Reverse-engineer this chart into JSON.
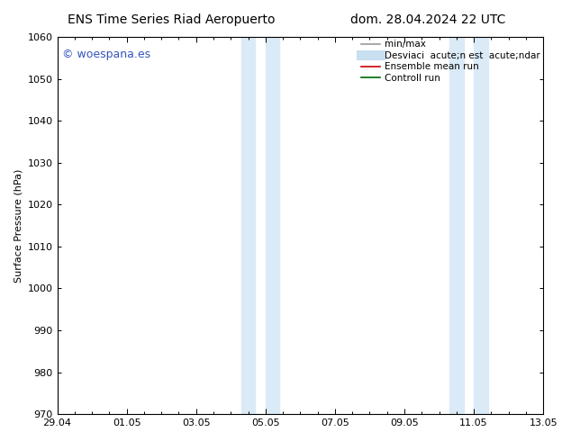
{
  "title_left": "ENS Time Series Riad Aeropuerto",
  "title_right": "dom. 28.04.2024 22 UTC",
  "ylabel": "Surface Pressure (hPa)",
  "ylim": [
    970,
    1060
  ],
  "yticks": [
    970,
    980,
    990,
    1000,
    1010,
    1020,
    1030,
    1040,
    1050,
    1060
  ],
  "xtick_labels": [
    "29.04",
    "01.05",
    "03.05",
    "05.05",
    "07.05",
    "09.05",
    "11.05",
    "13.05"
  ],
  "xtick_positions": [
    0,
    2,
    4,
    6,
    8,
    10,
    12,
    14
  ],
  "xlim": [
    0,
    14
  ],
  "shaded_bands": [
    {
      "x_start": 5.3,
      "x_end": 5.7
    },
    {
      "x_start": 6.0,
      "x_end": 6.4
    },
    {
      "x_start": 11.3,
      "x_end": 11.7
    },
    {
      "x_start": 12.0,
      "x_end": 12.4
    }
  ],
  "shade_color": "#daeaf7",
  "watermark_text": "© woespana.es",
  "watermark_color": "#3355bb",
  "legend_entries": [
    {
      "label": "min/max",
      "color": "#999999",
      "lw": 1.2,
      "style": "line"
    },
    {
      "label": "Desviaci  acute;n est  acute;ndar",
      "color": "#c8dff0",
      "lw": 8,
      "style": "line"
    },
    {
      "label": "Ensemble mean run",
      "color": "#cc0000",
      "lw": 1.2,
      "style": "line"
    },
    {
      "label": "Controll run",
      "color": "#006600",
      "lw": 1.2,
      "style": "line"
    }
  ],
  "background_color": "#ffffff",
  "plot_bg_color": "#ffffff",
  "title_fontsize": 10,
  "axis_fontsize": 8,
  "tick_fontsize": 8,
  "legend_fontsize": 7.5
}
